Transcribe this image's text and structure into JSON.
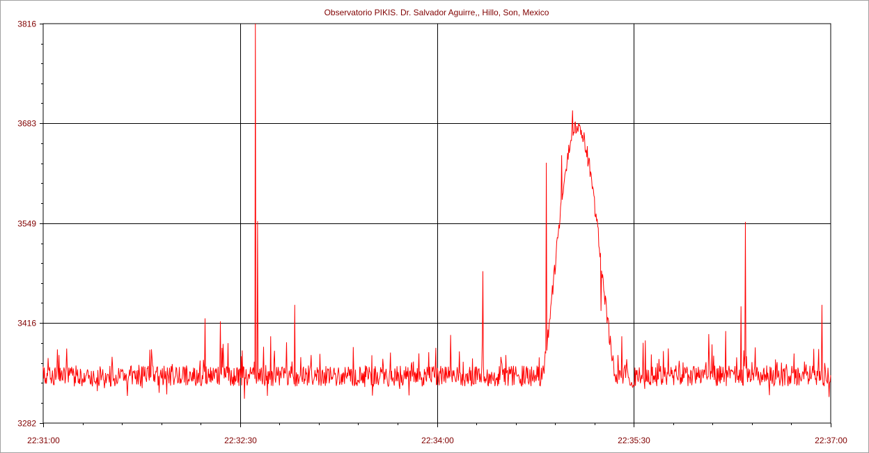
{
  "chart_data": {
    "type": "line",
    "title": "Observatorio PIKIS. Dr. Salvador Aguirre,, Hillo, Son, Mexico",
    "xlabel": "",
    "ylabel": "",
    "x_range_seconds": [
      0,
      360
    ],
    "ylim": [
      3282,
      3816
    ],
    "yticks": [
      "3816",
      "3683",
      "3549",
      "3416",
      "3282"
    ],
    "ytick_values": [
      3816,
      3683,
      3549,
      3416,
      3282
    ],
    "xticks": [
      "22:31:00",
      "22:32:30",
      "22:34:00",
      "22:35:30",
      "22:37:00"
    ],
    "xtick_values": [
      0,
      90,
      180,
      270,
      360
    ],
    "grid": true,
    "line_color": "#ff0000",
    "text_color": "#800000",
    "baseline": 3345,
    "noise": 14,
    "events": [
      {
        "t": 74,
        "value": 3422
      },
      {
        "t": 81,
        "value": 3418
      },
      {
        "t": 97,
        "value": 3816
      },
      {
        "t": 98,
        "value": 3552
      },
      {
        "t": 104,
        "value": 3398
      },
      {
        "t": 115,
        "value": 3440
      },
      {
        "t": 201,
        "value": 3485
      },
      {
        "t": 230,
        "value": 3630
      },
      {
        "t": 237,
        "value": 3640
      },
      {
        "t": 242,
        "value": 3700
      },
      {
        "t": 245,
        "value": 3680
      },
      {
        "t": 255,
        "value": 3432
      },
      {
        "t": 312,
        "value": 3405
      },
      {
        "t": 319,
        "value": 3438
      },
      {
        "t": 321,
        "value": 3551
      },
      {
        "t": 356,
        "value": 3440
      }
    ],
    "hump": {
      "start": 228,
      "peak": 244,
      "end": 262,
      "value": 3680
    }
  }
}
